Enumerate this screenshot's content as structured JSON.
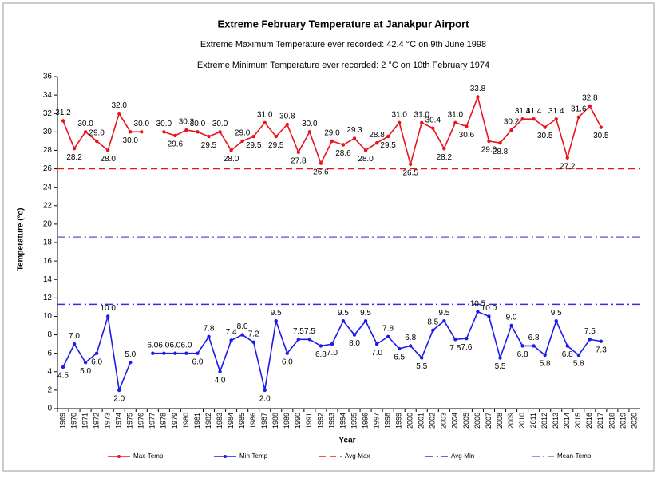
{
  "chart_data": {
    "type": "line",
    "title": "Extreme February Temperature at Janakpur Airport",
    "subtitle": "Extreme Maximum Temperature ever recorded: 42.4 °C on 9th June 1998",
    "subtitle2": "Extreme Minimum Temperature ever recorded: 2 °C on 10th  February 1974",
    "ylabel": "Temperature (°c)",
    "xlabel": "Year",
    "categories": [
      "1969",
      "1970",
      "1971",
      "1972",
      "1973",
      "1974",
      "1975",
      "1976",
      "1977",
      "1978",
      "1979",
      "1980",
      "1981",
      "1982",
      "1983",
      "1984",
      "1985",
      "1986",
      "1987",
      "1988",
      "1989",
      "1990",
      "1991",
      "1992",
      "1993",
      "1994",
      "1995",
      "1996",
      "1997",
      "1998",
      "1999",
      "2000",
      "2001",
      "2002",
      "2003",
      "2004",
      "2005",
      "2006",
      "2007",
      "2008",
      "2009",
      "2010",
      "2011",
      "2012",
      "2013",
      "2014",
      "2015",
      "2016",
      "2017",
      "2018",
      "2019",
      "2020"
    ],
    "series": [
      {
        "name": "Max-Temp",
        "color": "#e8141c",
        "values": [
          31.2,
          28.2,
          30.0,
          29.0,
          28.0,
          32.0,
          30.0,
          30.0,
          null,
          30.0,
          29.6,
          30.2,
          30.0,
          29.5,
          30.0,
          28.0,
          29.0,
          29.5,
          31.0,
          29.5,
          30.8,
          27.8,
          30.0,
          26.6,
          29.0,
          28.6,
          29.3,
          28.0,
          28.8,
          29.5,
          31.0,
          26.5,
          31.0,
          30.4,
          28.2,
          31.0,
          30.6,
          33.8,
          29.0,
          28.8,
          30.2,
          31.4,
          31.4,
          30.5,
          31.4,
          27.2,
          31.6,
          32.8,
          30.5,
          null,
          null,
          null
        ],
        "value_labels": [
          "31.2",
          "28.2",
          "30.0",
          "29.0",
          "28.0",
          "32.0",
          "30.0",
          "30.0",
          null,
          "30.0",
          "29.6",
          "30.2",
          "30.0",
          "29.5",
          "30.0",
          "28.0",
          "29.0",
          "29.5",
          "31.0",
          "29.5",
          "30.8",
          "27.8",
          "30.0",
          "26.6",
          "29.0",
          "28.6",
          "29.3",
          "28.0",
          "28.8",
          "29.5",
          "31.0",
          "26.5",
          "31.0",
          "30.4",
          "28.2",
          "31.0",
          "30.6",
          "33.8",
          "29.0",
          "28.8",
          "30.2",
          "31.4",
          "31.4",
          "30.5",
          "31.4",
          "27.2",
          "31.6",
          "32.8",
          "30.5",
          null,
          null,
          null
        ]
      },
      {
        "name": "Min-Temp",
        "color": "#1c1ce8",
        "values": [
          4.5,
          7.0,
          5.0,
          6.0,
          10.0,
          2.0,
          5.0,
          null,
          6.0,
          6.0,
          6.0,
          6.0,
          6.0,
          7.8,
          4.0,
          7.4,
          8.0,
          7.2,
          2.0,
          9.5,
          6.0,
          7.5,
          7.5,
          6.8,
          7.0,
          9.5,
          8.0,
          9.5,
          7.0,
          7.8,
          6.5,
          6.8,
          5.5,
          8.5,
          9.5,
          7.5,
          7.6,
          10.5,
          10.0,
          5.5,
          9.0,
          6.8,
          6.8,
          5.8,
          9.5,
          6.8,
          5.8,
          7.5,
          7.3,
          null,
          null,
          null
        ],
        "value_labels": [
          "4.5",
          "7.0",
          "5.0",
          "6.0",
          "10.0",
          "2.0",
          "5.0",
          null,
          "6.0",
          "6.0",
          "6.0",
          "6.0",
          "6.0",
          "7.8",
          "4.0",
          "7.4",
          "8.0",
          "7.2",
          "2.0",
          "9.5",
          "6.0",
          "7.5",
          "7.5",
          "6.8",
          "7.0",
          "9.5",
          "8.0",
          "9.5",
          "7.0",
          "7.8",
          "6.5",
          "6.8",
          "5.5",
          "8.5",
          "9.5",
          "7.5",
          "7.6",
          "10.5",
          "10.0",
          "5.5",
          "9.0",
          "6.8",
          "6.8",
          "5.8",
          "9.5",
          "6.8",
          "5.8",
          "7.5",
          "7.3",
          null,
          null,
          null
        ]
      }
    ],
    "reference_lines": [
      {
        "name": "Avg-Max",
        "value": 26,
        "color": "#e8141c",
        "style": "dash"
      },
      {
        "name": "Avg-Min",
        "value": 11.3,
        "color": "#3030e0",
        "style": "dashdot"
      },
      {
        "name": "Mean-Temp",
        "value": 18.6,
        "color": "#7070d8",
        "style": "dashdot"
      }
    ],
    "ylim": [
      0,
      36
    ],
    "yticks": [
      0,
      2,
      4,
      6,
      8,
      10,
      12,
      14,
      16,
      18,
      20,
      22,
      24,
      26,
      28,
      30,
      32,
      34,
      36
    ],
    "legend": "bottom"
  }
}
